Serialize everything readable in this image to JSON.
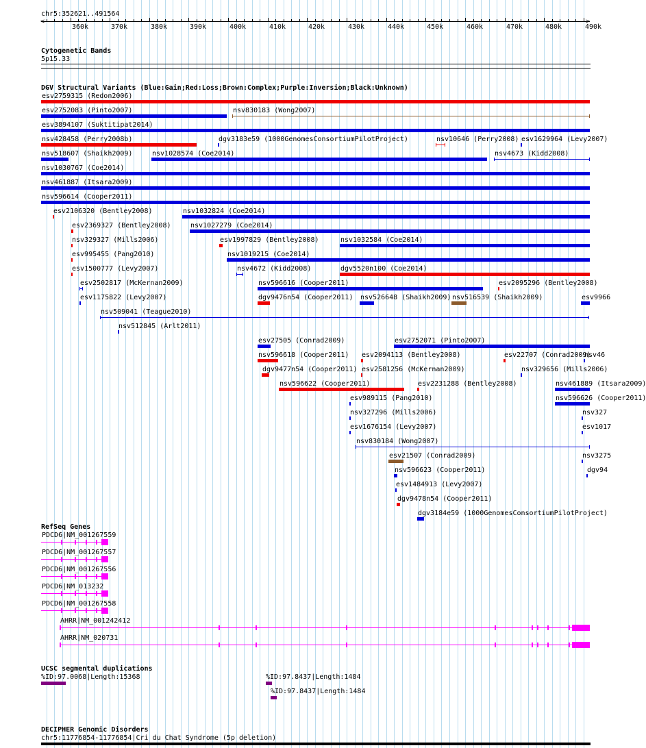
{
  "coords": "chr5:352621..491564",
  "ruler": {
    "start": 352621,
    "end": 491564,
    "labels": [
      {
        "pos": 360000,
        "text": "360k"
      },
      {
        "pos": 370000,
        "text": "370k"
      },
      {
        "pos": 380000,
        "text": "380k"
      },
      {
        "pos": 390000,
        "text": "390k"
      },
      {
        "pos": 400000,
        "text": "400k"
      },
      {
        "pos": 410000,
        "text": "410k"
      },
      {
        "pos": 420000,
        "text": "420k"
      },
      {
        "pos": 430000,
        "text": "430k"
      },
      {
        "pos": 440000,
        "text": "440k"
      },
      {
        "pos": 450000,
        "text": "450k"
      },
      {
        "pos": 460000,
        "text": "460k"
      },
      {
        "pos": 470000,
        "text": "470k"
      },
      {
        "pos": 480000,
        "text": "480k"
      },
      {
        "pos": 490000,
        "text": "490k"
      }
    ]
  },
  "colors": {
    "gain": "#0000dd",
    "loss": "#ee0000",
    "complex": "#8b5a2b",
    "inversion": "#800080",
    "gene": "#ff00ff",
    "segdup": "#800080",
    "grid": "#b8dcef"
  },
  "cytoband": {
    "title": "Cytogenetic Bands",
    "band": "5p15.33"
  },
  "dgv": {
    "title": "DGV Structural Variants (Blue:Gain;Red:Loss;Brown:Complex;Purple:Inversion;Black:Unknown)",
    "features": [
      {
        "label": "esv2759315 (Redon2006)",
        "type": "loss",
        "start": 352621,
        "end": 491564,
        "row": 0
      },
      {
        "label": "esv2752083 (Pinto2007)",
        "type": "gain",
        "start": 352621,
        "end": 399600,
        "row": 1
      },
      {
        "label": "nsv830183 (Wong2007)",
        "type": "complex",
        "start": 401000,
        "end": 491564,
        "row": 1,
        "thin": true
      },
      {
        "label": "esv3894107 (Suktitipat2014)",
        "type": "gain",
        "start": 352621,
        "end": 491564,
        "row": 2
      },
      {
        "label": "nsv428458 (Perry2008b)",
        "type": "loss",
        "start": 352621,
        "end": 392000,
        "row": 3
      },
      {
        "label": "dgv3183e59 (1000GenomesConsortiumPilotProject)",
        "type": "gain",
        "start": 397400,
        "end": 397800,
        "row": 3
      },
      {
        "label": "nsv10646 (Perry2008)",
        "type": "loss",
        "start": 452600,
        "end": 455000,
        "row": 3,
        "span": true
      },
      {
        "label": "esv1629964 (Levy2007)",
        "type": "gain",
        "start": 474000,
        "end": 474300,
        "row": 3
      },
      {
        "label": "nsv518607 (Shaikh2009)",
        "type": "gain",
        "start": 352621,
        "end": 359500,
        "row": 4
      },
      {
        "label": "nsv1028574 (Coe2014)",
        "type": "gain",
        "start": 380500,
        "end": 465500,
        "row": 4
      },
      {
        "label": "nsv4673 (Kidd2008)",
        "type": "gain",
        "start": 467300,
        "end": 491564,
        "row": 4,
        "span": true
      },
      {
        "label": "nsv1030767 (Coe2014)",
        "type": "gain",
        "start": 352621,
        "end": 491564,
        "row": 5
      },
      {
        "label": "nsv461887 (Itsara2009)",
        "type": "gain",
        "start": 352621,
        "end": 491564,
        "row": 6
      },
      {
        "label": "nsv596614 (Cooper2011)",
        "type": "gain",
        "start": 352621,
        "end": 491564,
        "row": 7
      },
      {
        "label": "esv2106320 (Bentley2008)",
        "type": "loss",
        "start": 355600,
        "end": 356000,
        "row": 8
      },
      {
        "label": "nsv1032824 (Coe2014)",
        "type": "gain",
        "start": 388300,
        "end": 491564,
        "row": 8
      },
      {
        "label": "esv2369327 (Bentley2008)",
        "type": "loss",
        "start": 360300,
        "end": 360700,
        "row": 9
      },
      {
        "label": "nsv1027279 (Coe2014)",
        "type": "gain",
        "start": 390300,
        "end": 491564,
        "row": 9
      },
      {
        "label": "nsv329327 (Mills2006)",
        "type": "loss",
        "start": 360300,
        "end": 360500,
        "row": 10
      },
      {
        "label": "esv1997829 (Bentley2008)",
        "type": "loss",
        "start": 397800,
        "end": 398600,
        "row": 10
      },
      {
        "label": "nsv1032584 (Coe2014)",
        "type": "gain",
        "start": 428300,
        "end": 491564,
        "row": 10
      },
      {
        "label": "esv995455 (Pang2010)",
        "type": "loss",
        "start": 360300,
        "end": 360500,
        "row": 11
      },
      {
        "label": "nsv1019215 (Coe2014)",
        "type": "gain",
        "start": 399700,
        "end": 491564,
        "row": 11
      },
      {
        "label": "esv1500777 (Levy2007)",
        "type": "loss",
        "start": 360300,
        "end": 360500,
        "row": 12
      },
      {
        "label": "nsv4672 (Kidd2008)",
        "type": "gain",
        "start": 402000,
        "end": 403800,
        "row": 12,
        "span": true
      },
      {
        "label": "dgv5520n100 (Coe2014)",
        "type": "loss",
        "start": 428300,
        "end": 491564,
        "row": 12
      },
      {
        "label": "esv2502817 (McKernan2009)",
        "type": "gain",
        "start": 362300,
        "end": 363200,
        "row": 13,
        "span": true
      },
      {
        "label": "nsv596616 (Cooper2011)",
        "type": "gain",
        "start": 407500,
        "end": 464500,
        "row": 13
      },
      {
        "label": "esv2095296 (Bentley2008)",
        "type": "loss",
        "start": 468300,
        "end": 468700,
        "row": 13
      },
      {
        "label": "esv1175822 (Levy2007)",
        "type": "gain",
        "start": 362300,
        "end": 362600,
        "row": 14
      },
      {
        "label": "dgv9476n54 (Cooper2011)",
        "type": "loss",
        "start": 407500,
        "end": 410600,
        "row": 14
      },
      {
        "label": "nsv526648 (Shaikh2009)",
        "type": "gain",
        "start": 433300,
        "end": 437000,
        "row": 14
      },
      {
        "label": "nsv516539 (Shaikh2009)",
        "type": "complex",
        "start": 456500,
        "end": 460400,
        "row": 14
      },
      {
        "label": "esv9966",
        "type": "gain",
        "start": 489300,
        "end": 491564,
        "row": 14
      },
      {
        "label": "nsv509041 (Teague2010)",
        "type": "gain",
        "start": 367600,
        "end": 491400,
        "row": 15,
        "span": true
      },
      {
        "label": "nsv512845 (Arlt2011)",
        "type": "gain",
        "start": 372000,
        "end": 372300,
        "row": 16
      },
      {
        "label": "esv27505 (Conrad2009)",
        "type": "gain",
        "start": 407500,
        "end": 410800,
        "row": 17
      },
      {
        "label": "esv2752071 (Pinto2007)",
        "type": "gain",
        "start": 441900,
        "end": 491564,
        "row": 17
      },
      {
        "label": "nsv596618 (Cooper2011)",
        "type": "loss",
        "start": 407500,
        "end": 412700,
        "row": 18
      },
      {
        "label": "esv2094113 (Bentley2008)",
        "type": "loss",
        "start": 433700,
        "end": 434200,
        "row": 18
      },
      {
        "label": "esv22707 (Conrad2009)",
        "type": "loss",
        "start": 469700,
        "end": 470300,
        "row": 18
      },
      {
        "label": "nsv46",
        "type": "gain",
        "start": 490000,
        "end": 490300,
        "row": 18
      },
      {
        "label": "dgv9477n54 (Cooper2011)",
        "type": "loss",
        "start": 408500,
        "end": 410300,
        "row": 19
      },
      {
        "label": "esv2581256 (McKernan2009)",
        "type": "loss",
        "start": 433700,
        "end": 434000,
        "row": 19
      },
      {
        "label": "nsv329656 (Mills2006)",
        "type": "gain",
        "start": 474100,
        "end": 474400,
        "row": 19
      },
      {
        "label": "nsv596622 (Cooper2011)",
        "type": "loss",
        "start": 412800,
        "end": 444500,
        "row": 20
      },
      {
        "label": "esv2231288 (Bentley2008)",
        "type": "loss",
        "start": 447800,
        "end": 448300,
        "row": 20
      },
      {
        "label": "nsv461889 (Itsara2009)",
        "type": "gain",
        "start": 482800,
        "end": 491564,
        "row": 20
      },
      {
        "label": "esv989115 (Pang2010)",
        "type": "gain",
        "start": 430700,
        "end": 431000,
        "row": 21
      },
      {
        "label": "nsv596626 (Cooper2011)",
        "type": "gain",
        "start": 482800,
        "end": 491564,
        "row": 21
      },
      {
        "label": "nsv327296 (Mills2006)",
        "type": "gain",
        "start": 430700,
        "end": 431000,
        "row": 22
      },
      {
        "label": "nsv327",
        "type": "gain",
        "start": 489500,
        "end": 489800,
        "row": 22
      },
      {
        "label": "esv1676154 (Levy2007)",
        "type": "gain",
        "start": 430700,
        "end": 431000,
        "row": 23
      },
      {
        "label": "esv1017",
        "type": "gain",
        "start": 489500,
        "end": 489800,
        "row": 23
      },
      {
        "label": "nsv830184 (Wong2007)",
        "type": "gain",
        "start": 432200,
        "end": 491564,
        "row": 24,
        "span": true
      },
      {
        "label": "esv21507 (Conrad2009)",
        "type": "complex",
        "start": 440600,
        "end": 444400,
        "row": 25
      },
      {
        "label": "nsv3275",
        "type": "gain",
        "start": 489500,
        "end": 489800,
        "row": 25
      },
      {
        "label": "nsv596623 (Cooper2011)",
        "type": "gain",
        "start": 442000,
        "end": 442900,
        "row": 26
      },
      {
        "label": "dgv94",
        "type": "gain",
        "start": 490700,
        "end": 491000,
        "row": 26
      },
      {
        "label": "esv1484913 (Levy2007)",
        "type": "gain",
        "start": 442300,
        "end": 442600,
        "row": 27
      },
      {
        "label": "dgv9478n54 (Cooper2011)",
        "type": "loss",
        "start": 442600,
        "end": 443500,
        "row": 28
      },
      {
        "label": "dgv3184e59 (1000GenomesConsortiumPilotProject)",
        "type": "gain",
        "start": 447900,
        "end": 449500,
        "row": 29
      }
    ]
  },
  "refseq": {
    "title": "RefSeq Genes",
    "genes": [
      {
        "label": "PDCD6|NM_001267559",
        "start": 352621,
        "end": 369600,
        "row": 0
      },
      {
        "label": "PDCD6|NM_001267557",
        "start": 352621,
        "end": 369600,
        "row": 1
      },
      {
        "label": "PDCD6|NM_001267556",
        "start": 352621,
        "end": 369600,
        "row": 2
      },
      {
        "label": "PDCD6|NM_013232",
        "start": 352621,
        "end": 369600,
        "row": 3
      },
      {
        "label": "PDCD6|NM_001267558",
        "start": 352621,
        "end": 369600,
        "row": 4
      },
      {
        "label": "AHRR|NM_001242412",
        "start": 357300,
        "end": 491564,
        "row": 5
      },
      {
        "label": "AHRR|NM_020731",
        "start": 357300,
        "end": 491564,
        "row": 6
      }
    ]
  },
  "segdup": {
    "title": "UCSC segmental duplications",
    "items": [
      {
        "label": "%ID:97.0068|Length:15368",
        "start": 352621,
        "end": 358800,
        "row": 0
      },
      {
        "label": "%ID:97.8437|Length:1484",
        "start": 409600,
        "end": 411100,
        "row": 0
      },
      {
        "label": "%ID:97.8437|Length:1484",
        "start": 410800,
        "end": 412300,
        "row": 1
      }
    ]
  },
  "decipher": {
    "title": "DECIPHER Genomic Disorders",
    "label": "chr5:11776854-11776854|Cri du Chat Syndrome (5p deletion)"
  }
}
